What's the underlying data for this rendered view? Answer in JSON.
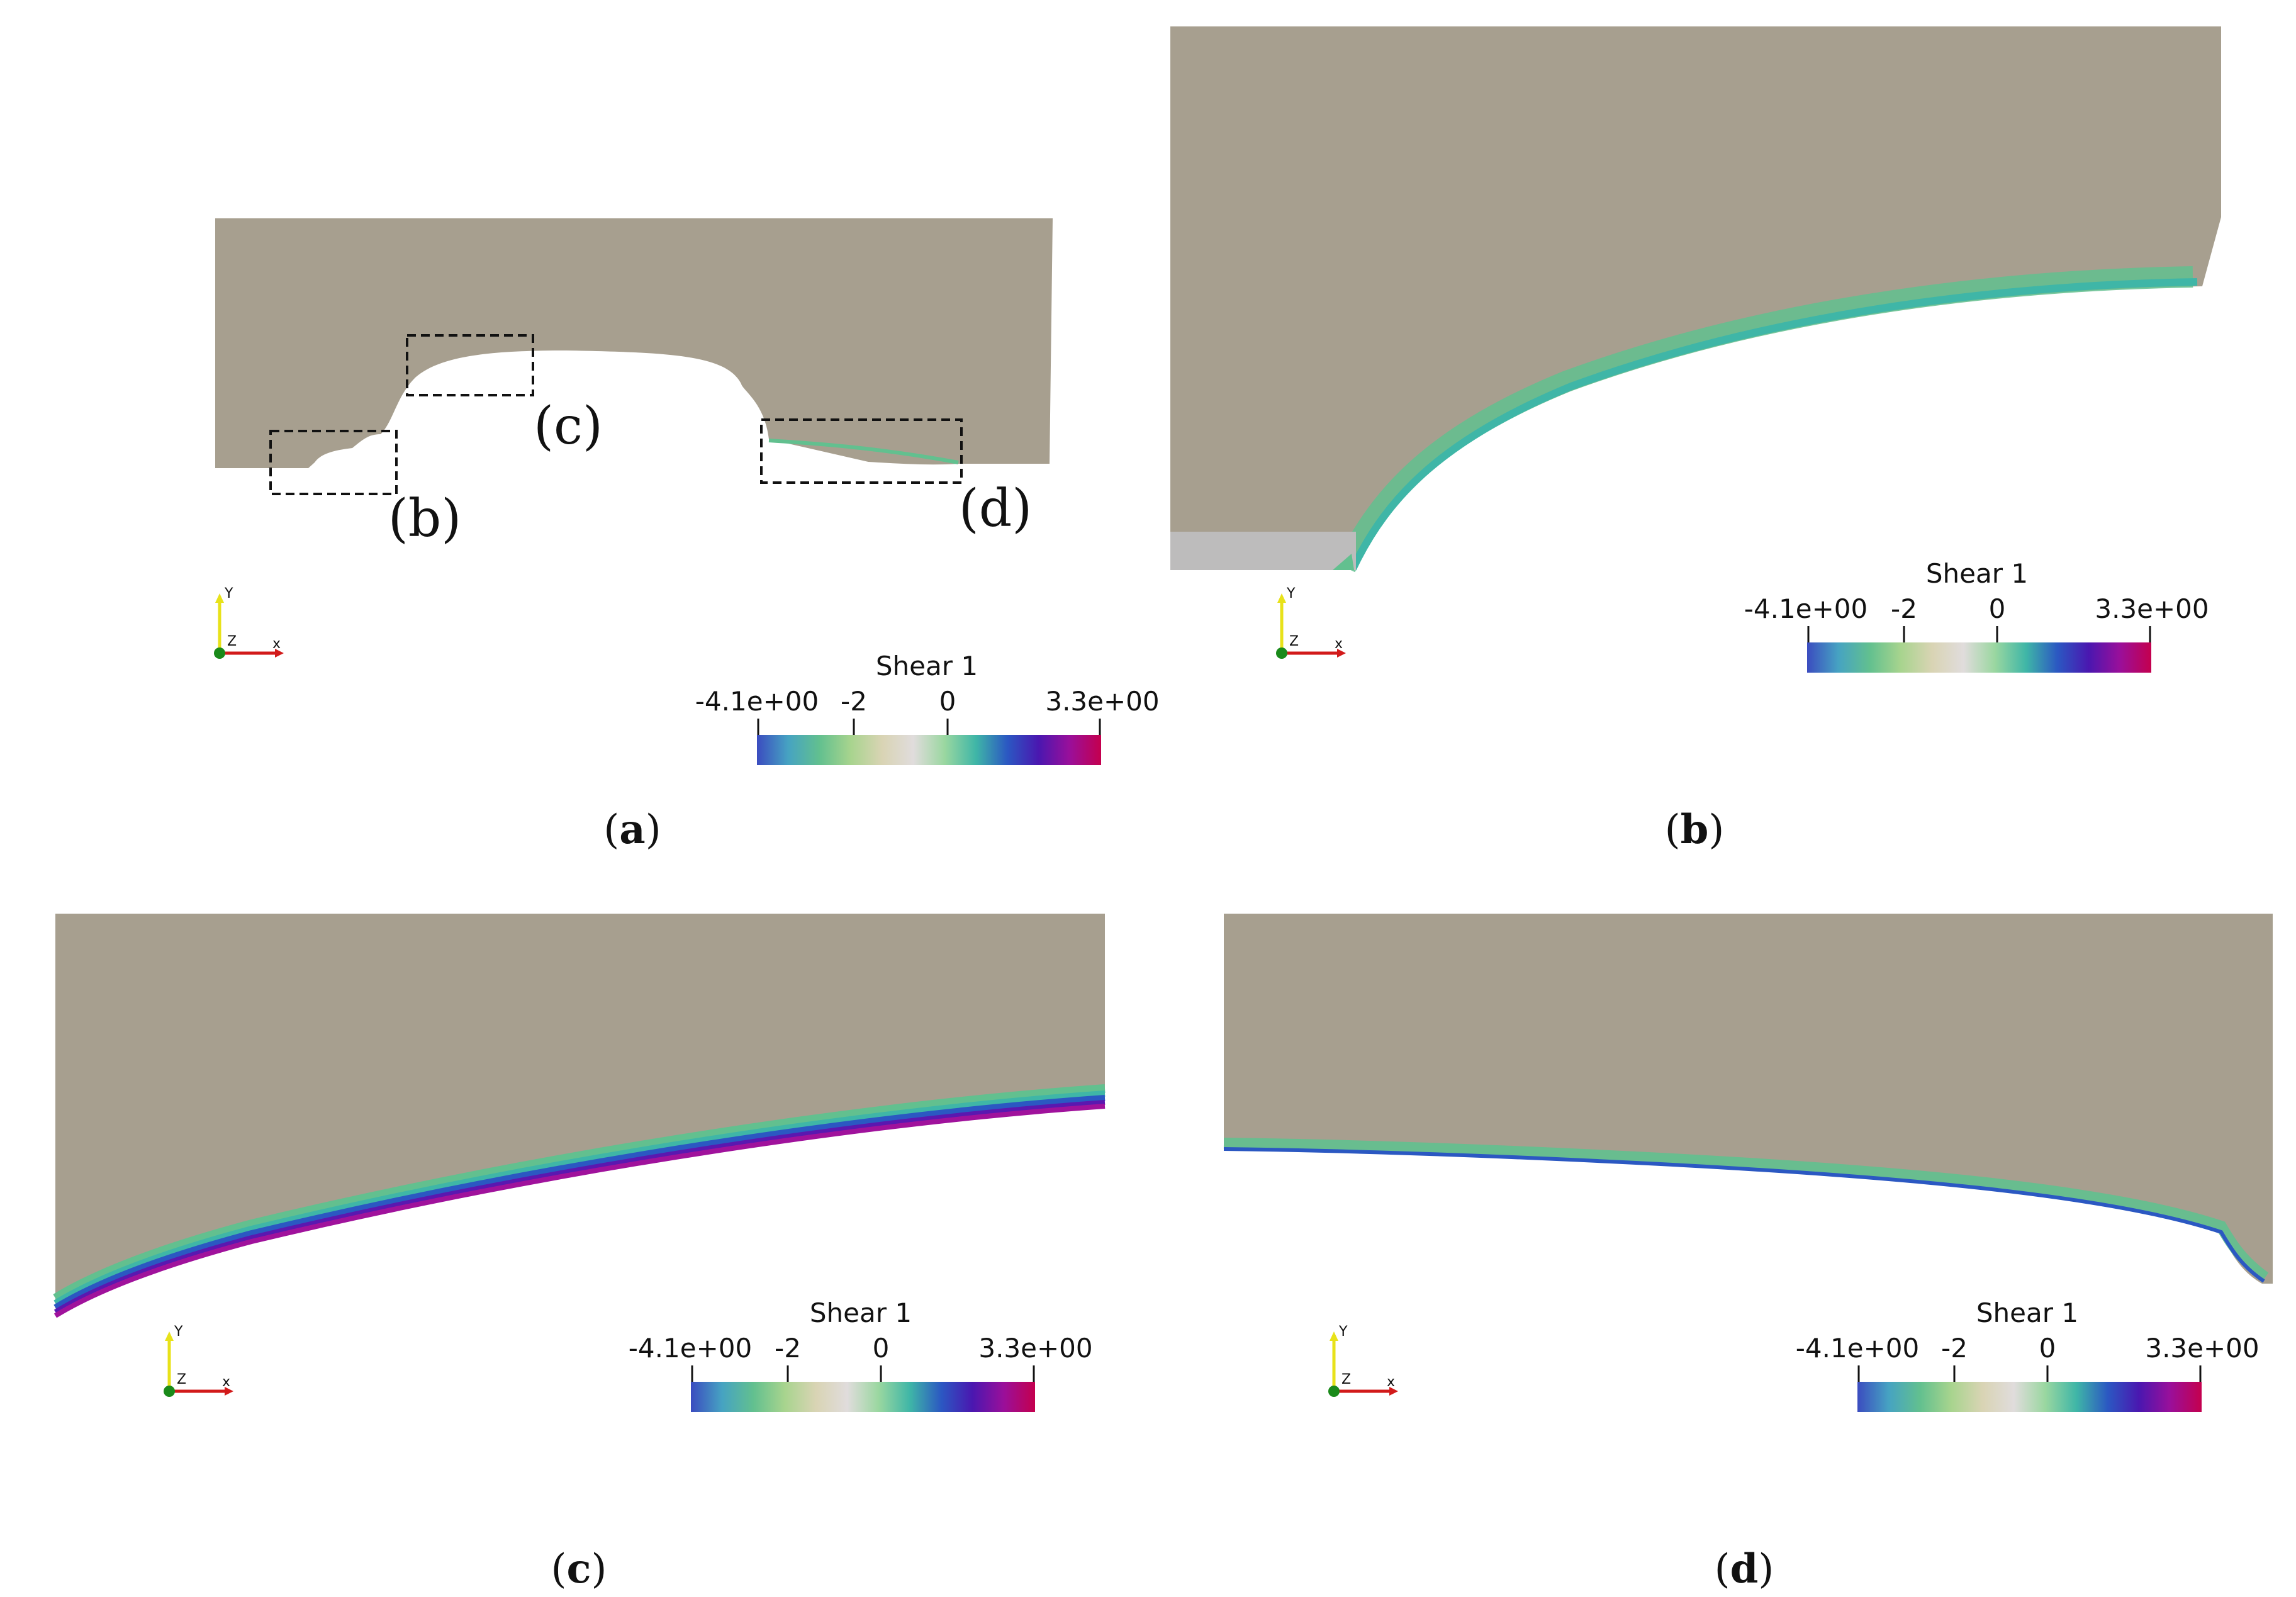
{
  "figure": {
    "colors": {
      "solid": "#a79f8f",
      "background": "#ffffff",
      "colormap": [
        "#3b4cc0",
        "#46a3c2",
        "#62c08f",
        "#a8d48e",
        "#d9d4b4",
        "#e0dcdc",
        "#9ad7a0",
        "#3fb6a7",
        "#2b58c2",
        "#4a17b0",
        "#9a0f9a",
        "#c4004e"
      ]
    },
    "panels": [
      {
        "id": "a",
        "caption": "a",
        "callouts": [
          {
            "label": "(b)"
          },
          {
            "label": "(c)"
          },
          {
            "label": "(d)"
          }
        ],
        "colorbar": {
          "title": "Shear 1",
          "min_label": "-4.1e+00",
          "max_label": "3.3e+00",
          "ticks": [
            "-2",
            "0"
          ],
          "min": -4.1,
          "max": 3.3
        },
        "axes": {
          "x": "x",
          "y": "Y",
          "z": "Z"
        }
      },
      {
        "id": "b",
        "caption": "b",
        "colorbar": {
          "title": "Shear 1",
          "min_label": "-4.1e+00",
          "max_label": "3.3e+00",
          "ticks": [
            "-2",
            "0"
          ],
          "min": -4.1,
          "max": 3.3
        },
        "axes": {
          "x": "x",
          "y": "Y",
          "z": "Z"
        }
      },
      {
        "id": "c",
        "caption": "c",
        "colorbar": {
          "title": "Shear 1",
          "min_label": "-4.1e+00",
          "max_label": "3.3e+00",
          "ticks": [
            "-2",
            "0"
          ],
          "min": -4.1,
          "max": 3.3
        },
        "axes": {
          "x": "x",
          "y": "Y",
          "z": "Z"
        }
      },
      {
        "id": "d",
        "caption": "d",
        "colorbar": {
          "title": "Shear 1",
          "min_label": "-4.1e+00",
          "max_label": "3.3e+00",
          "ticks": [
            "-2",
            "0"
          ],
          "min": -4.1,
          "max": 3.3
        },
        "axes": {
          "x": "x",
          "y": "Y",
          "z": "Z"
        }
      }
    ]
  }
}
